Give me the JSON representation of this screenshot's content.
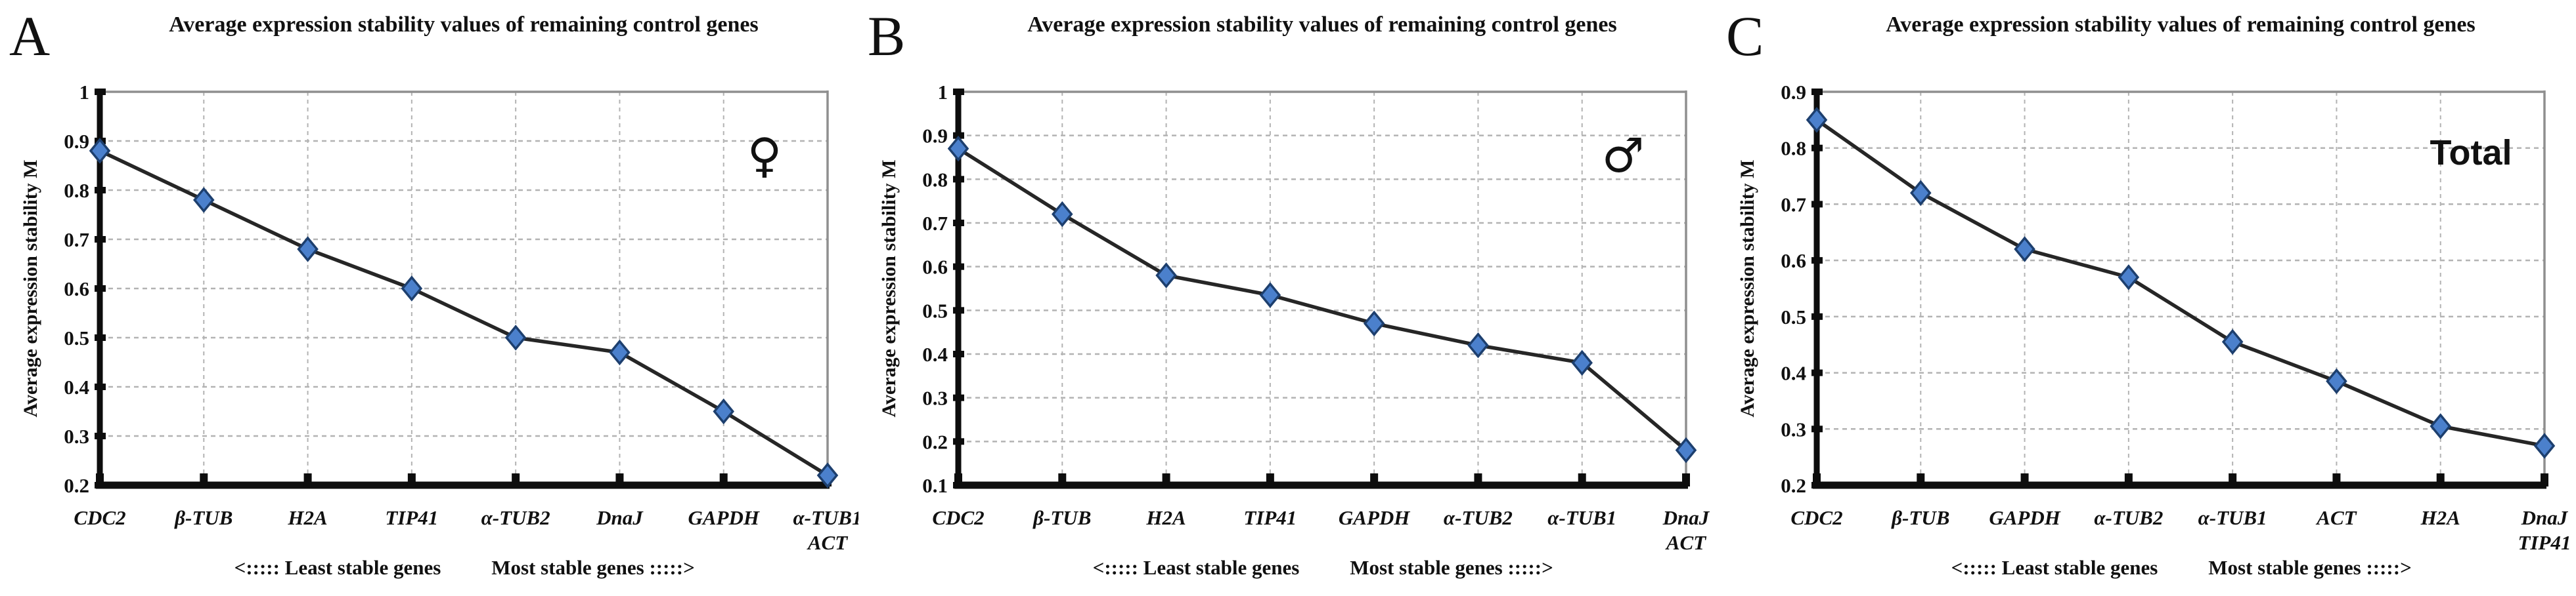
{
  "figure": {
    "background": "#ffffff",
    "y_axis_label": "Average expression stability M",
    "captions": {
      "least_stable": "<:::::  Least stable genes",
      "most_stable": "Most stable genes :::::>"
    }
  },
  "style": {
    "marker_shape": "diamond",
    "marker_fill": "#4b80cc",
    "marker_stroke": "#1d3f6e",
    "line_color": "#262626",
    "grid_color": "#b3b3b3",
    "border_color": "#8f8f8f",
    "axis_color": "#0d0d0d",
    "text_color": "#111111"
  },
  "chart_data": [
    {
      "panel_letter": "A",
      "type": "line",
      "title": "Average expression stability values of remaining control genes",
      "corner_label": "♀",
      "corner_label_kind": "symbol",
      "ylabel": "Average expression stability M",
      "xlabel": "",
      "categories": [
        [
          "CDC2"
        ],
        [
          "β-TUB"
        ],
        [
          "H2A"
        ],
        [
          "TIP41"
        ],
        [
          "α-TUB2"
        ],
        [
          "DnaJ"
        ],
        [
          "GAPDH"
        ],
        [
          "α-TUB1",
          "ACT"
        ]
      ],
      "values": [
        0.88,
        0.78,
        0.68,
        0.6,
        0.5,
        0.47,
        0.35,
        0.22
      ],
      "ylim": [
        0.2,
        1.0
      ],
      "yticks": [
        1,
        0.9,
        0.8,
        0.7,
        0.6,
        0.5,
        0.4,
        0.3,
        0.2
      ],
      "grid": true,
      "legend_position": "none",
      "footer_left": "<:::::  Least stable genes",
      "footer_right": "Most stable genes :::::>"
    },
    {
      "panel_letter": "B",
      "type": "line",
      "title": "Average expression stability values of remaining control genes",
      "corner_label": "♂",
      "corner_label_kind": "symbol",
      "ylabel": "Average expression stability M",
      "xlabel": "",
      "categories": [
        [
          "CDC2"
        ],
        [
          "β-TUB"
        ],
        [
          "H2A"
        ],
        [
          "TIP41"
        ],
        [
          "GAPDH"
        ],
        [
          "α-TUB2"
        ],
        [
          "α-TUB1"
        ],
        [
          "DnaJ",
          "ACT"
        ]
      ],
      "values": [
        0.87,
        0.72,
        0.58,
        0.535,
        0.47,
        0.42,
        0.38,
        0.18
      ],
      "ylim": [
        0.1,
        1.0
      ],
      "yticks": [
        1,
        0.9,
        0.8,
        0.7,
        0.6,
        0.5,
        0.4,
        0.3,
        0.2,
        0.1
      ],
      "grid": true,
      "legend_position": "none",
      "footer_left": "<:::::  Least stable genes",
      "footer_right": "Most stable genes :::::>"
    },
    {
      "panel_letter": "C",
      "type": "line",
      "title": "Average expression stability values of remaining control genes",
      "corner_label": "Total",
      "corner_label_kind": "word",
      "ylabel": "Average expression stability M",
      "xlabel": "",
      "categories": [
        [
          "CDC2"
        ],
        [
          "β-TUB"
        ],
        [
          "GAPDH"
        ],
        [
          "α-TUB2"
        ],
        [
          "α-TUB1"
        ],
        [
          "ACT"
        ],
        [
          "H2A"
        ],
        [
          "DnaJ",
          "TIP41"
        ]
      ],
      "values": [
        0.85,
        0.72,
        0.62,
        0.57,
        0.455,
        0.385,
        0.305,
        0.27
      ],
      "ylim": [
        0.2,
        0.9
      ],
      "yticks": [
        0.9,
        0.8,
        0.7,
        0.6,
        0.5,
        0.4,
        0.3,
        0.2
      ],
      "grid": true,
      "legend_position": "none",
      "footer_left": "<:::::  Least stable genes",
      "footer_right": "Most stable genes :::::>"
    }
  ]
}
